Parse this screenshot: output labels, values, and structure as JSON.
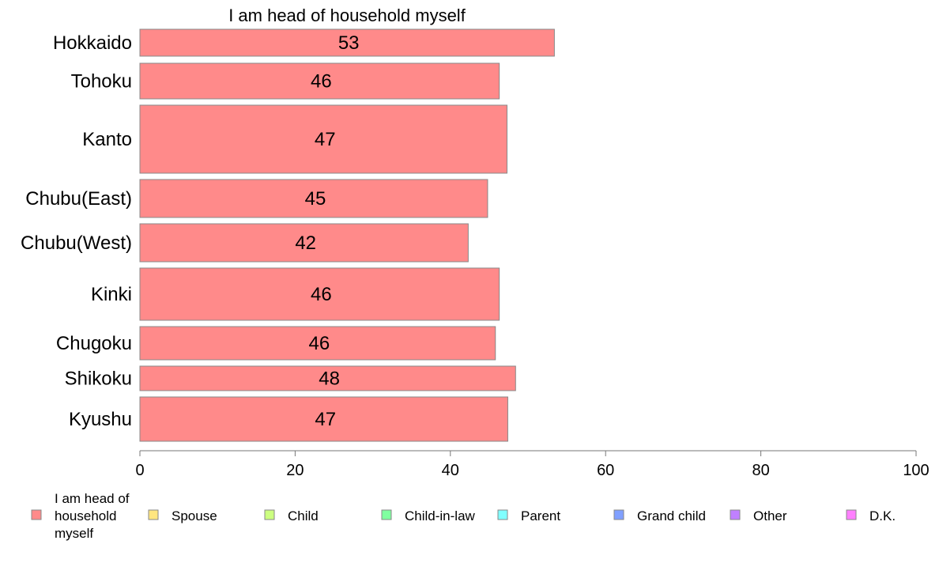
{
  "chart_data": {
    "type": "bar",
    "orientation": "horizontal",
    "title": "I am head of household myself",
    "categories": [
      "Hokkaido",
      "Tohoku",
      "Kanto",
      "Chubu(East)",
      "Chubu(West)",
      "Kinki",
      "Chugoku",
      "Shikoku",
      "Kyushu"
    ],
    "values": [
      53.4,
      46.3,
      47.3,
      44.8,
      42.3,
      46.3,
      45.8,
      48.4,
      47.4
    ],
    "value_labels": [
      "53",
      "46",
      "47",
      "45",
      "42",
      "46",
      "46",
      "48",
      "47"
    ],
    "bar_color": "#ff8a8a",
    "xlim": [
      0,
      100
    ],
    "xticks": [
      "0",
      "20",
      "40",
      "60",
      "80",
      "100"
    ],
    "xlabel": "",
    "ylabel": "",
    "grid": false,
    "legend_position": "bottom",
    "legend": [
      {
        "label": "I am head of household myself",
        "color": "#ff8a8a"
      },
      {
        "label": "Spouse",
        "color": "#ffe680"
      },
      {
        "label": "Child",
        "color": "#ccff80"
      },
      {
        "label": "Child-in-law",
        "color": "#80ffa0"
      },
      {
        "label": "Parent",
        "color": "#80ffff"
      },
      {
        "label": "Grand child",
        "color": "#80a0ff"
      },
      {
        "label": "Other",
        "color": "#c080ff"
      },
      {
        "label": "D.K.",
        "color": "#ff80ff"
      }
    ]
  }
}
